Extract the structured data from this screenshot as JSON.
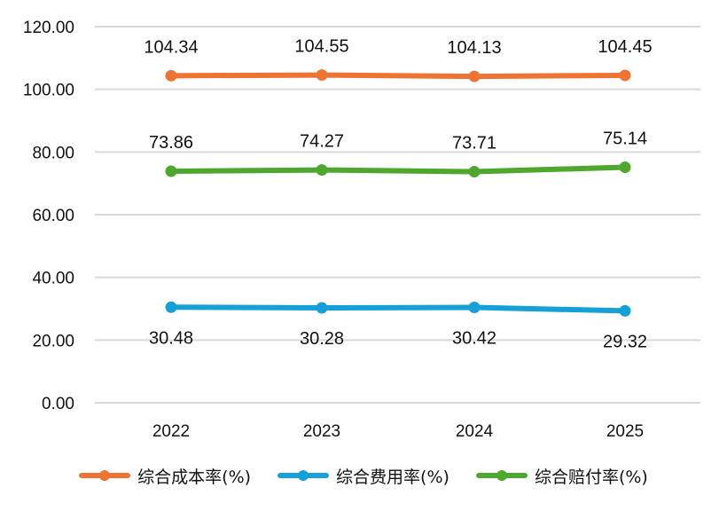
{
  "chart_data": {
    "type": "line",
    "title": "",
    "xlabel": "",
    "ylabel": "",
    "categories": [
      "2022",
      "2023",
      "2024",
      "2025"
    ],
    "ylim": [
      0,
      120
    ],
    "yticks": [
      "0.00",
      "20.00",
      "40.00",
      "60.00",
      "80.00",
      "100.00",
      "120.00"
    ],
    "grid": true,
    "legend_position": "bottom",
    "series": [
      {
        "name": "综合成本率(%)",
        "color": "#ED7432",
        "values": [
          104.34,
          104.55,
          104.13,
          104.45
        ],
        "labels": [
          "104.34",
          "104.55",
          "104.13",
          "104.45"
        ],
        "label_position": "above"
      },
      {
        "name": "综合费用率(%)",
        "color": "#16A0D8",
        "values": [
          30.48,
          30.28,
          30.42,
          29.32
        ],
        "labels": [
          "30.48",
          "30.28",
          "30.42",
          "29.32"
        ],
        "label_position": "below"
      },
      {
        "name": "综合赔付率(%)",
        "color": "#4EA72E",
        "values": [
          73.86,
          74.27,
          73.71,
          75.14
        ],
        "labels": [
          "73.86",
          "74.27",
          "73.71",
          "75.14"
        ],
        "label_position": "above"
      }
    ]
  },
  "legend": {
    "items": [
      {
        "label": "综合成本率(%)",
        "color": "#ED7432"
      },
      {
        "label": "综合费用率(%)",
        "color": "#16A0D8"
      },
      {
        "label": "综合赔付率(%)",
        "color": "#4EA72E"
      }
    ]
  }
}
